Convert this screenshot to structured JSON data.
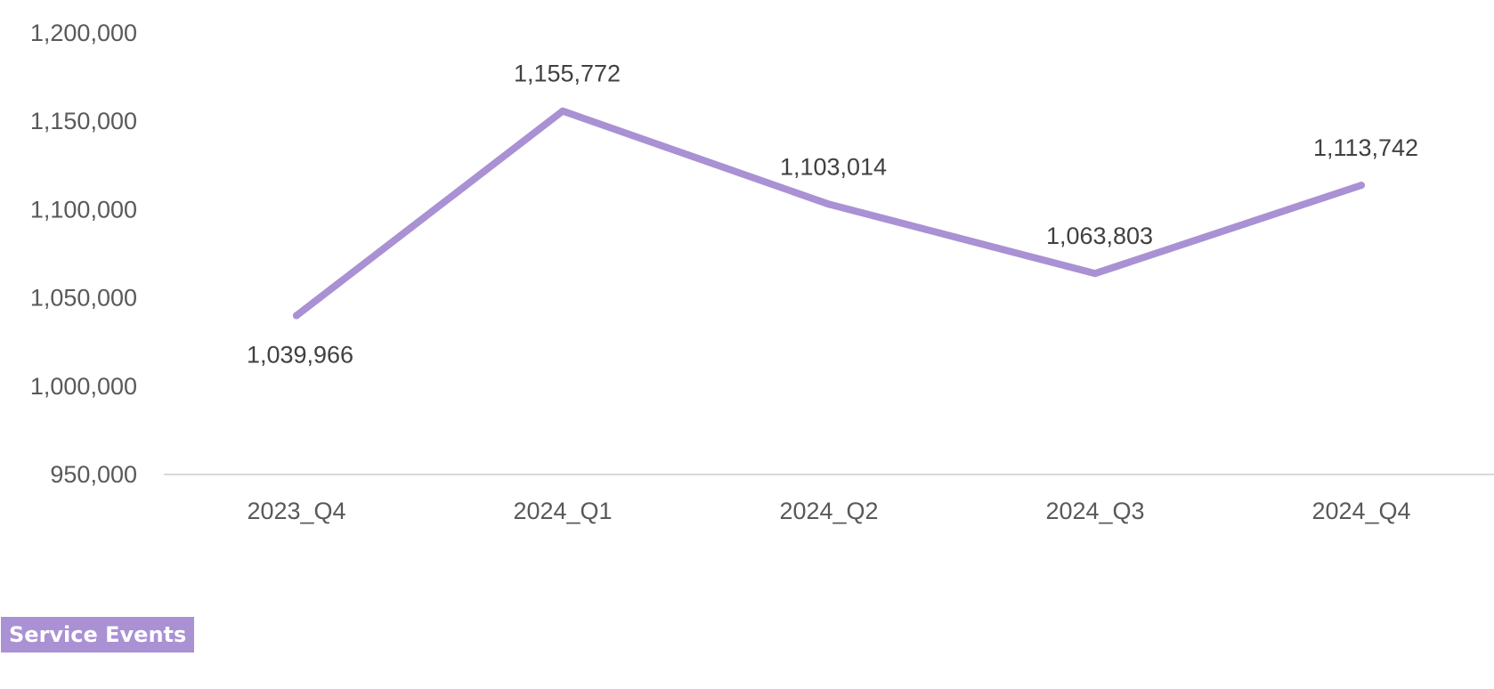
{
  "colors": {
    "line": "#a991d4",
    "axis": "#d9d9d9",
    "tick_text": "#595959",
    "label_text": "#404040",
    "legend_bg": "#a991d4",
    "legend_text": "#ffffff"
  },
  "legend": {
    "label": "Service Events"
  },
  "chart_data": {
    "type": "line",
    "categories": [
      "2023_Q4",
      "2024_Q1",
      "2024_Q2",
      "2024_Q3",
      "2024_Q4"
    ],
    "series": [
      {
        "name": "Service Events",
        "values": [
          1039966,
          1155772,
          1103014,
          1063803,
          1113742
        ],
        "labels": [
          "1,039,966",
          "1,155,772",
          "1,103,014",
          "1,063,803",
          "1,113,742"
        ]
      }
    ],
    "ylim": [
      950000,
      1200000
    ],
    "yticks": [
      950000,
      1000000,
      1050000,
      1100000,
      1150000,
      1200000
    ],
    "ytick_labels": [
      "950,000",
      "1,000,000",
      "1,050,000",
      "1,100,000",
      "1,150,000",
      "1,200,000"
    ],
    "grid": false,
    "legend_position": "bottom-left"
  }
}
